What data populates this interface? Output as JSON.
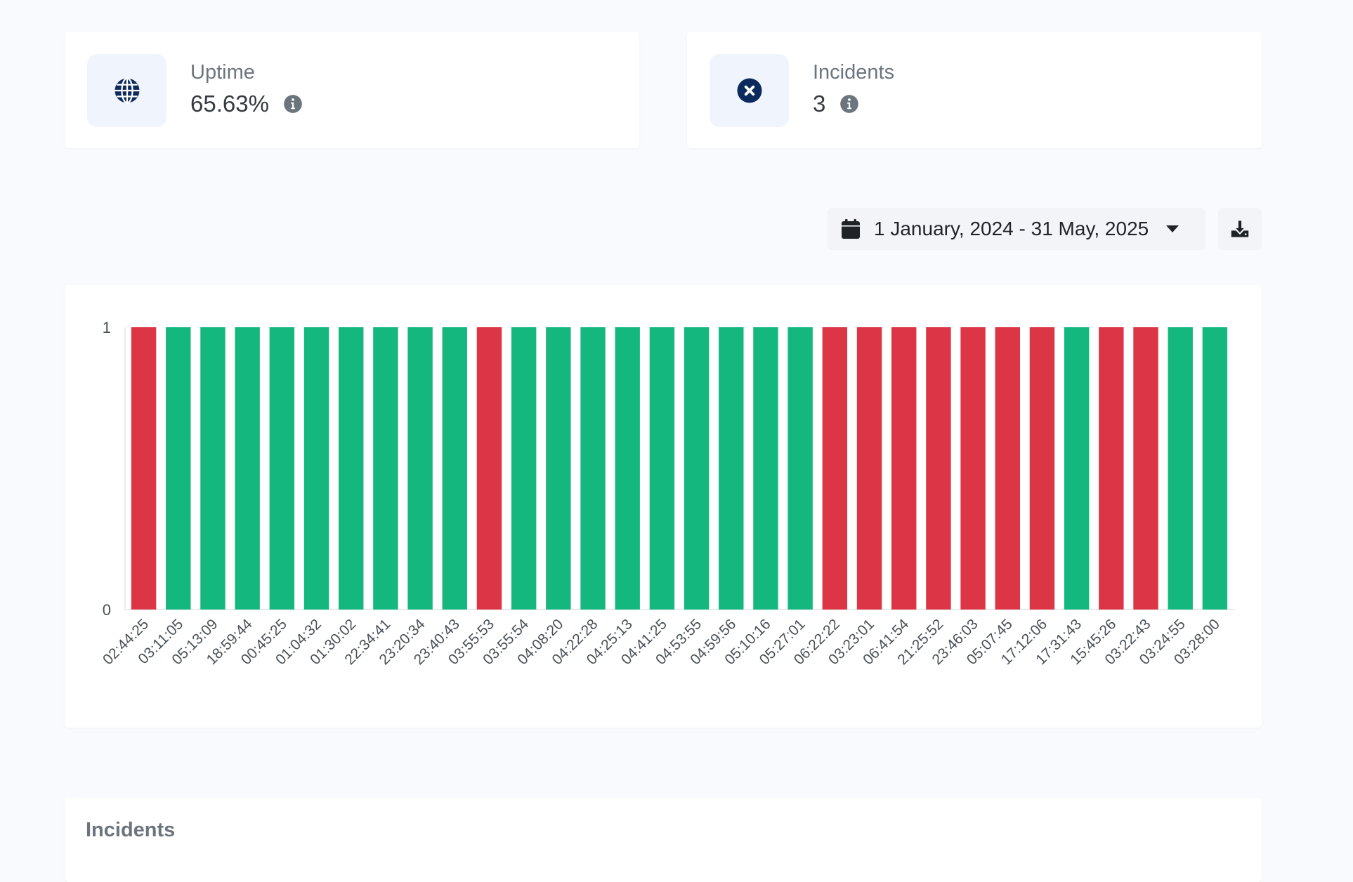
{
  "stats": {
    "uptime": {
      "label": "Uptime",
      "value": "65.63%",
      "icon": "globe-icon"
    },
    "incidents": {
      "label": "Incidents",
      "value": "3",
      "icon": "x-circle-icon"
    }
  },
  "toolbar": {
    "date_range": "1 January, 2024 - 31 May, 2025",
    "calendar_icon": "calendar-icon",
    "caret_icon": "caret-down-icon",
    "download_icon": "download-icon"
  },
  "colors": {
    "up": "#14b87e",
    "down": "#dc3545",
    "accent": "#0d2a5c"
  },
  "chart_data": {
    "type": "bar",
    "categories": [
      "02:44:25",
      "03:11:05",
      "05:13:09",
      "18:59:44",
      "00:45:25",
      "01:04:32",
      "01:30:02",
      "22:34:41",
      "23:20:34",
      "23:40:43",
      "03:55:53",
      "03:55:54",
      "04:08:20",
      "04:22:28",
      "04:25:13",
      "04:41:25",
      "04:53:55",
      "04:59:56",
      "05:10:16",
      "05:27:01",
      "06:22:22",
      "03:23:01",
      "06:41:54",
      "21:25:52",
      "23:46:03",
      "05:07:45",
      "17:12:06",
      "17:31:43",
      "15:45:26",
      "03:22:43",
      "03:24:55",
      "03:28:00"
    ],
    "values": [
      1,
      1,
      1,
      1,
      1,
      1,
      1,
      1,
      1,
      1,
      1,
      1,
      1,
      1,
      1,
      1,
      1,
      1,
      1,
      1,
      1,
      1,
      1,
      1,
      1,
      1,
      1,
      1,
      1,
      1,
      1,
      1
    ],
    "status": [
      "down",
      "up",
      "up",
      "up",
      "up",
      "up",
      "up",
      "up",
      "up",
      "up",
      "down",
      "up",
      "up",
      "up",
      "up",
      "up",
      "up",
      "up",
      "up",
      "up",
      "down",
      "down",
      "down",
      "down",
      "down",
      "down",
      "down",
      "up",
      "down",
      "down",
      "up",
      "up"
    ],
    "ylim": [
      0,
      1
    ],
    "yticks": [
      "0",
      "1"
    ]
  },
  "incidents_section": {
    "title": "Incidents"
  }
}
